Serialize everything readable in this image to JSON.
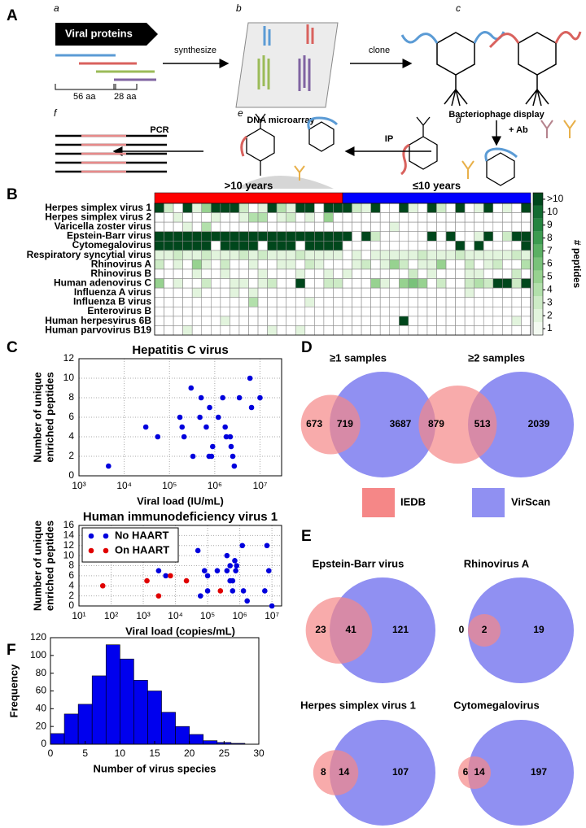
{
  "panel_labels": [
    "A",
    "B",
    "C",
    "D",
    "E",
    "F"
  ],
  "panel_a": {
    "sublabels": [
      "a",
      "b",
      "c",
      "d",
      "e",
      "f"
    ],
    "viral_proteins": "Viral proteins",
    "len1": "56 aa",
    "len2": "28 aa",
    "synthesize": "synthesize",
    "microarray": "DNA microarray",
    "clone": "clone",
    "phage": "Bacteriophage display",
    "ab": "+ Ab",
    "ip": "IP",
    "pcr": "PCR"
  },
  "chart_data": [
    {
      "type": "heatmap",
      "rows": [
        "Herpes simplex virus 1",
        "Herpes simplex virus 2",
        "Varicella zoster virus",
        "Epstein-Barr virus",
        "Cytomegalovirus",
        "Respiratory syncytial virus",
        "Rhinovirus A",
        "Rhinovirus B",
        "Human adenovirus C",
        "Influenza A virus",
        "Influenza B virus",
        "Enterovirus B",
        "Human herpesvirus 6B",
        "Human parvovirus B19"
      ],
      "groups": [
        {
          "name": ">10 years",
          "color": "#ff0000",
          "size": 20
        },
        {
          "name": "≤10 years",
          "color": "#0000ff",
          "size": 20
        }
      ],
      "values": [
        [
          12,
          3,
          0,
          12,
          2,
          5,
          12,
          12,
          12,
          3,
          0,
          2,
          12,
          4,
          2,
          12,
          12,
          0,
          12,
          12,
          12,
          3,
          2,
          12,
          0,
          0,
          12,
          2,
          0,
          12,
          3,
          0,
          12,
          0,
          2,
          12,
          0,
          2,
          0,
          12
        ],
        [
          0,
          0,
          2,
          0,
          0,
          0,
          2,
          0,
          0,
          2,
          4,
          4,
          0,
          2,
          3,
          0,
          2,
          0,
          5,
          0,
          0,
          0,
          0,
          0,
          0,
          0,
          0,
          0,
          0,
          0,
          0,
          0,
          0,
          0,
          0,
          0,
          0,
          0,
          0,
          0
        ],
        [
          0,
          0,
          0,
          2,
          0,
          4,
          0,
          0,
          0,
          0,
          0,
          0,
          0,
          0,
          0,
          0,
          0,
          0,
          0,
          0,
          0,
          0,
          0,
          0,
          0,
          2,
          0,
          0,
          0,
          0,
          0,
          0,
          0,
          0,
          0,
          0,
          0,
          0,
          0,
          0
        ],
        [
          12,
          12,
          12,
          12,
          12,
          12,
          12,
          12,
          12,
          12,
          12,
          12,
          12,
          12,
          12,
          12,
          12,
          12,
          12,
          12,
          12,
          0,
          12,
          3,
          0,
          0,
          0,
          0,
          0,
          12,
          0,
          12,
          0,
          0,
          2,
          12,
          0,
          3,
          12,
          12
        ],
        [
          12,
          12,
          12,
          12,
          12,
          12,
          0,
          12,
          12,
          12,
          12,
          0,
          12,
          12,
          12,
          0,
          12,
          12,
          12,
          12,
          0,
          0,
          0,
          0,
          0,
          0,
          0,
          0,
          0,
          0,
          0,
          0,
          12,
          0,
          12,
          0,
          0,
          0,
          0,
          12
        ],
        [
          2,
          2,
          3,
          2,
          2,
          3,
          2,
          2,
          2,
          3,
          2,
          3,
          2,
          2,
          2,
          3,
          2,
          2,
          2,
          2,
          0,
          2,
          0,
          2,
          2,
          2,
          2,
          2,
          3,
          2,
          2,
          2,
          3,
          2,
          2,
          2,
          2,
          2,
          3,
          2
        ],
        [
          3,
          0,
          2,
          0,
          5,
          2,
          0,
          3,
          0,
          0,
          2,
          0,
          0,
          2,
          2,
          0,
          3,
          2,
          0,
          0,
          0,
          2,
          3,
          0,
          2,
          5,
          3,
          0,
          2,
          2,
          5,
          0,
          0,
          3,
          0,
          2,
          3,
          0,
          0,
          4
        ],
        [
          0,
          0,
          0,
          0,
          2,
          0,
          0,
          2,
          0,
          0,
          0,
          2,
          0,
          0,
          0,
          2,
          0,
          0,
          2,
          0,
          2,
          0,
          0,
          0,
          0,
          0,
          0,
          3,
          0,
          2,
          0,
          0,
          0,
          2,
          2,
          0,
          0,
          0,
          3,
          0
        ],
        [
          5,
          0,
          2,
          0,
          0,
          3,
          0,
          0,
          2,
          2,
          0,
          2,
          3,
          0,
          0,
          12,
          0,
          0,
          3,
          3,
          0,
          0,
          0,
          5,
          2,
          0,
          5,
          6,
          5,
          0,
          3,
          0,
          0,
          3,
          4,
          3,
          12,
          12,
          3,
          12
        ],
        [
          0,
          0,
          0,
          0,
          2,
          0,
          0,
          0,
          2,
          0,
          2,
          0,
          0,
          0,
          0,
          0,
          0,
          0,
          0,
          0,
          0,
          0,
          0,
          0,
          0,
          0,
          0,
          0,
          0,
          0,
          0,
          0,
          0,
          2,
          0,
          0,
          0,
          0,
          0,
          0
        ],
        [
          0,
          0,
          0,
          0,
          0,
          0,
          0,
          0,
          0,
          0,
          4,
          0,
          0,
          0,
          0,
          0,
          2,
          0,
          0,
          0,
          0,
          0,
          0,
          0,
          0,
          0,
          0,
          0,
          0,
          0,
          0,
          0,
          0,
          0,
          0,
          0,
          0,
          0,
          0,
          0
        ],
        [
          0,
          0,
          0,
          0,
          0,
          0,
          0,
          0,
          0,
          0,
          0,
          0,
          0,
          0,
          0,
          0,
          0,
          0,
          0,
          0,
          0,
          0,
          0,
          0,
          0,
          0,
          0,
          0,
          0,
          0,
          0,
          0,
          0,
          0,
          0,
          0,
          0,
          0,
          0,
          0
        ],
        [
          0,
          0,
          0,
          0,
          0,
          0,
          0,
          2,
          0,
          0,
          0,
          0,
          0,
          0,
          0,
          0,
          0,
          0,
          0,
          0,
          0,
          0,
          0,
          0,
          0,
          0,
          12,
          0,
          0,
          0,
          0,
          0,
          0,
          0,
          0,
          0,
          0,
          0,
          2,
          0
        ],
        [
          0,
          0,
          0,
          2,
          0,
          0,
          0,
          0,
          0,
          0,
          0,
          0,
          2,
          0,
          0,
          2,
          0,
          0,
          0,
          0,
          0,
          0,
          0,
          0,
          0,
          0,
          0,
          0,
          0,
          0,
          0,
          0,
          0,
          0,
          0,
          0,
          0,
          0,
          0,
          0
        ]
      ],
      "colorscale": [
        "#f3faf1",
        "#e2f4dd",
        "#cdebc6",
        "#b2e0ab",
        "#97d290",
        "#79c27a",
        "#5bb064",
        "#3d9b50",
        "#24843f",
        "#136b31",
        "#00471c"
      ],
      "colorbar_label": "# peptides",
      "colorbar_ticks": [
        {
          "value": 11,
          "label": ">10"
        },
        10,
        9,
        8,
        7,
        6,
        5,
        4,
        3,
        2,
        1
      ]
    },
    {
      "type": "scatter",
      "title": "Hepatitis C virus",
      "xlabel": "Viral load (IU/mL)",
      "ylabel": [
        "Number of unique",
        "enriched peptides"
      ],
      "xscale": "log",
      "xlim": [
        1000,
        30000000
      ],
      "ylim": [
        0,
        12
      ],
      "grid": true,
      "xticks": [
        {
          "value": 1000,
          "label": "10³"
        },
        {
          "value": 10000,
          "label": "10⁴"
        },
        {
          "value": 100000,
          "label": "10⁵"
        },
        {
          "value": 1000000,
          "label": "10⁶"
        },
        {
          "value": 10000000,
          "label": "10⁷"
        }
      ],
      "yticks": [
        0,
        2,
        4,
        6,
        8,
        10,
        12
      ],
      "series": [
        {
          "color": "#0000dd",
          "x": [
            4500,
            30000,
            55000,
            170000,
            190000,
            210000,
            300000,
            330000,
            470000,
            500000,
            650000,
            750000,
            850000,
            900000,
            770000,
            1200000,
            1500000,
            1800000,
            2200000,
            2500000,
            2700000,
            3500000,
            6000000,
            6500000,
            10000000,
            1700000,
            2300000
          ],
          "y": [
            1,
            5,
            4,
            6,
            5,
            4,
            9,
            2,
            6,
            8,
            5,
            2,
            2,
            3,
            7,
            6,
            8,
            4,
            4,
            2,
            1,
            8,
            10,
            7,
            8,
            5,
            3
          ]
        }
      ]
    },
    {
      "type": "scatter",
      "title": "Human immunodeficiency virus 1",
      "xlabel": "Viral load (copies/mL)",
      "ylabel": [
        "Number of unique",
        "enriched peptides"
      ],
      "xscale": "log",
      "xlim": [
        10,
        20000000
      ],
      "ylim": [
        0,
        16
      ],
      "grid": true,
      "legend": "upper left",
      "xticks": [
        {
          "value": 10,
          "label": "10¹"
        },
        {
          "value": 100,
          "label": "10²"
        },
        {
          "value": 1000,
          "label": "10³"
        },
        {
          "value": 10000,
          "label": "10⁴"
        },
        {
          "value": 100000,
          "label": "10⁵"
        },
        {
          "value": 1000000,
          "label": "10⁶"
        },
        {
          "value": 10000000,
          "label": "10⁷"
        }
      ],
      "yticks": [
        0,
        2,
        4,
        6,
        8,
        10,
        12,
        14,
        16
      ],
      "series": [
        {
          "name": "No HAART",
          "color": "#0000dd",
          "x": [
            10000,
            50000,
            3000,
            5000,
            80000,
            100000,
            100000,
            200000,
            400000,
            400000,
            500000,
            600000,
            600000,
            700000,
            750000,
            800000,
            1200000,
            1300000,
            1700000,
            500000,
            6000000,
            7000000,
            8000000,
            10000000,
            60000
          ],
          "y": [
            12,
            11,
            7,
            6,
            7,
            3,
            6,
            7,
            7,
            10,
            8,
            3,
            5,
            9,
            7,
            8,
            12,
            3,
            1,
            5,
            3,
            12,
            7,
            0,
            2
          ]
        },
        {
          "name": "On HAART",
          "color": "#e00000",
          "x": [
            55,
            1300,
            3000,
            7000,
            22000,
            250000
          ],
          "y": [
            4,
            5,
            2,
            6,
            5,
            3
          ]
        }
      ]
    },
    {
      "type": "venn",
      "sets": [
        {
          "name": "IEDB",
          "color": "#f58787"
        },
        {
          "name": "VirScan",
          "color": "#9090f2"
        }
      ],
      "panels": [
        {
          "title": "≥1 samples",
          "values": [
            673,
            719,
            3687
          ]
        },
        {
          "title": "≥2 samples",
          "values": [
            879,
            513,
            2039
          ]
        }
      ]
    },
    {
      "type": "venn",
      "panels": [
        {
          "title": "Epstein-Barr virus",
          "values": [
            23,
            41,
            121
          ]
        },
        {
          "title": "Rhinovirus A",
          "values": [
            0,
            2,
            19
          ]
        },
        {
          "title": "Herpes simplex virus 1",
          "values": [
            8,
            14,
            107
          ]
        },
        {
          "title": "Cytomegalovirus",
          "values": [
            6,
            14,
            197
          ]
        }
      ]
    },
    {
      "type": "histogram",
      "xlabel": "Number of virus species",
      "ylabel": "Frequency",
      "color": "#0000ee",
      "bins": [
        0,
        2,
        4,
        6,
        8,
        10,
        12,
        14,
        16,
        18,
        20,
        22,
        24,
        26,
        28,
        30
      ],
      "counts": [
        12,
        34,
        45,
        77,
        112,
        96,
        72,
        60,
        36,
        20,
        11,
        4,
        2,
        1,
        0
      ],
      "xlim": [
        0,
        30
      ],
      "ylim": [
        0,
        120
      ],
      "xticks": [
        0,
        5,
        10,
        15,
        20,
        25,
        30
      ],
      "yticks": [
        0,
        20,
        40,
        60,
        80,
        100,
        120
      ]
    }
  ]
}
